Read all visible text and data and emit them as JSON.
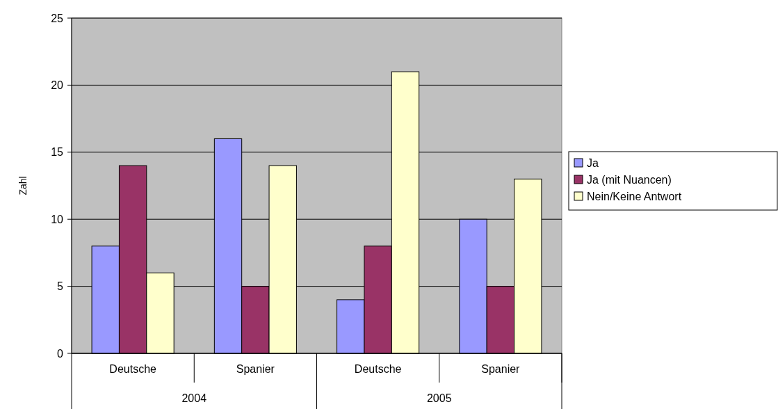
{
  "chart_data": {
    "type": "bar",
    "ylabel": "Zahl",
    "categories": [
      "Deutsche",
      "Spanier",
      "Deutsche",
      "Spanier"
    ],
    "series": [
      {
        "name": "Ja",
        "color": "#9999ff",
        "values": [
          8,
          16,
          4,
          10
        ]
      },
      {
        "name": "Ja (mit Nuancen)",
        "color": "#993366",
        "values": [
          14,
          5,
          8,
          5
        ]
      },
      {
        "name": "Nein/Keine Antwort",
        "color": "#ffffcc",
        "values": [
          6,
          14,
          21,
          13
        ]
      }
    ],
    "ylim": [
      0,
      25
    ],
    "yticks": [
      0,
      5,
      10,
      15,
      20,
      25
    ],
    "grid": "y",
    "legend": "right",
    "annotations": [
      "2004",
      "2005"
    ]
  }
}
